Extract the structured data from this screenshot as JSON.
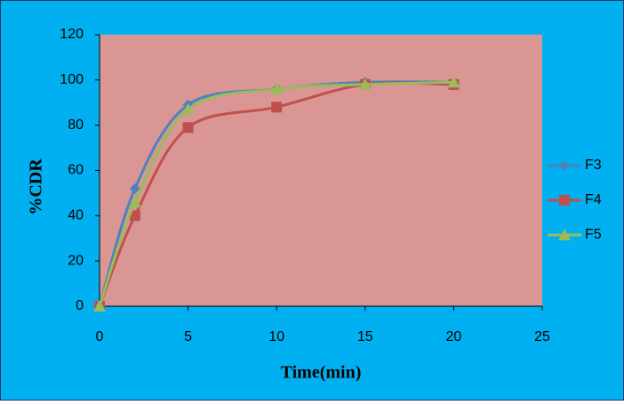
{
  "chart_data": {
    "type": "line",
    "smooth": true,
    "x_label": "Time(min)",
    "y_label": "%CDR",
    "x": [
      0,
      2,
      5,
      10,
      15,
      20
    ],
    "series": [
      {
        "name": "F3",
        "color": "#4f81bd",
        "marker": "diamond",
        "values": [
          0,
          52,
          89,
          96,
          99,
          99
        ]
      },
      {
        "name": "F4",
        "color": "#c0504d",
        "marker": "square",
        "values": [
          0,
          40,
          79,
          88,
          98,
          98
        ]
      },
      {
        "name": "F5",
        "color": "#9bbb59",
        "marker": "triangle",
        "values": [
          0,
          46,
          87,
          96,
          98,
          99
        ]
      }
    ],
    "xlim": [
      0,
      25
    ],
    "xticks": [
      0,
      5,
      10,
      15,
      20,
      25
    ],
    "ylim": [
      0,
      120
    ],
    "yticks": [
      0,
      20,
      40,
      60,
      80,
      100,
      120
    ],
    "legend": "right"
  }
}
